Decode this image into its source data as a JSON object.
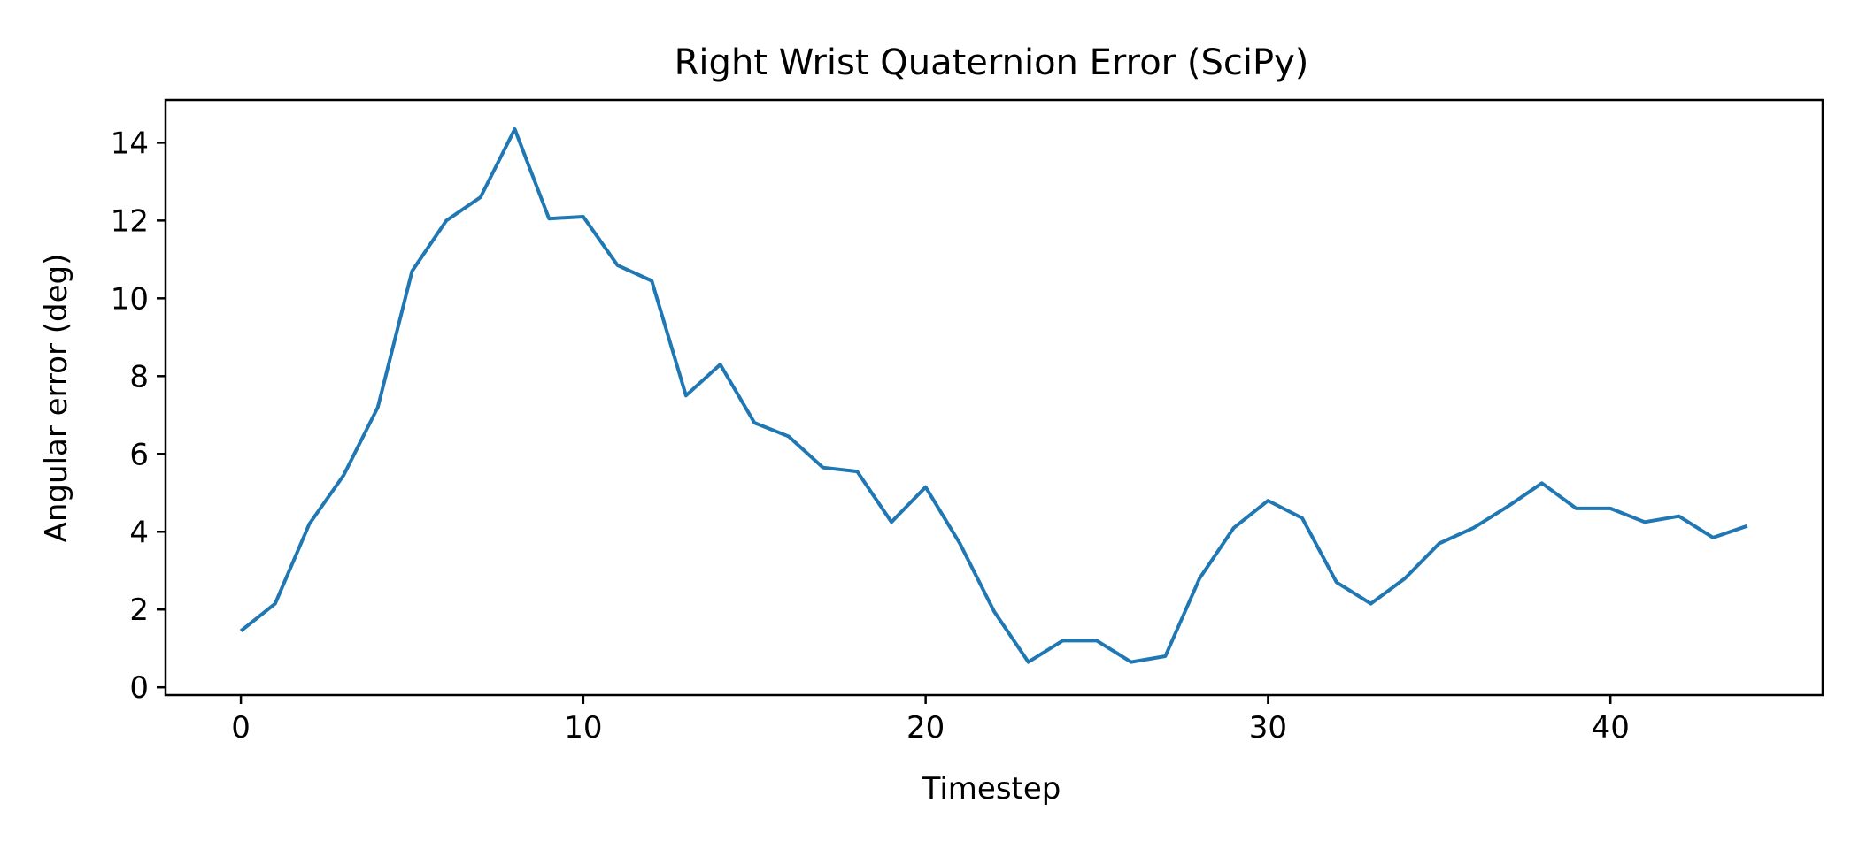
{
  "chart_data": {
    "type": "line",
    "title": "Right Wrist Quaternion Error (SciPy)",
    "xlabel": "Timestep",
    "ylabel": "Angular error (deg)",
    "xlim": [
      -2.2,
      46.2
    ],
    "ylim": [
      -0.2,
      15.1
    ],
    "xticks": [
      0,
      10,
      20,
      30,
      40
    ],
    "yticks": [
      0,
      2,
      4,
      6,
      8,
      10,
      12,
      14
    ],
    "grid": false,
    "series": [
      {
        "color": "#1f77b4",
        "x": [
          0,
          1,
          2,
          3,
          4,
          5,
          6,
          7,
          8,
          9,
          10,
          11,
          12,
          13,
          14,
          15,
          16,
          17,
          18,
          19,
          20,
          21,
          22,
          23,
          24,
          25,
          26,
          27,
          28,
          29,
          30,
          31,
          32,
          33,
          34,
          35,
          36,
          37,
          38,
          39,
          40,
          41,
          42,
          43,
          44
        ],
        "y": [
          1.45,
          2.15,
          4.2,
          5.45,
          7.2,
          10.7,
          12.0,
          12.6,
          14.35,
          12.05,
          12.1,
          10.85,
          10.45,
          7.5,
          8.3,
          6.8,
          6.45,
          5.65,
          5.55,
          4.25,
          5.15,
          3.7,
          1.95,
          0.65,
          1.2,
          1.2,
          0.65,
          0.8,
          2.8,
          4.1,
          4.8,
          4.35,
          2.7,
          2.15,
          2.8,
          3.7,
          4.1,
          4.65,
          5.25,
          4.6,
          4.6,
          4.25,
          4.4,
          3.85,
          4.15
        ]
      }
    ]
  }
}
